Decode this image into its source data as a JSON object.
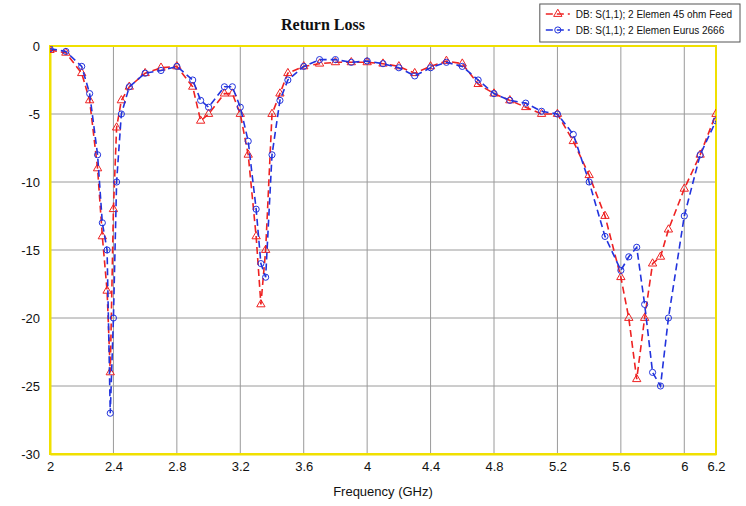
{
  "chart_data": {
    "type": "line",
    "title": "Return Loss",
    "x_label": "Frequency (GHz)",
    "x": [
      2.0,
      2.1,
      2.2,
      2.25,
      2.3,
      2.33,
      2.36,
      2.38,
      2.4,
      2.42,
      2.45,
      2.5,
      2.6,
      2.7,
      2.8,
      2.9,
      2.95,
      3.0,
      3.1,
      3.15,
      3.2,
      3.25,
      3.3,
      3.33,
      3.36,
      3.4,
      3.45,
      3.5,
      3.6,
      3.7,
      3.8,
      3.9,
      4.0,
      4.1,
      4.2,
      4.3,
      4.4,
      4.5,
      4.6,
      4.7,
      4.8,
      4.9,
      5.0,
      5.1,
      5.2,
      5.3,
      5.4,
      5.5,
      5.6,
      5.65,
      5.7,
      5.75,
      5.8,
      5.85,
      5.9,
      6.0,
      6.1,
      6.2
    ],
    "series": [
      {
        "name": "DB: S(1,1); 2 Elemen 45 ohm Feed",
        "color": "#ee2222",
        "marker": "triangle",
        "line_style": "dashed",
        "values": [
          -0.3,
          -0.5,
          -2,
          -4,
          -9,
          -14,
          -18,
          -24,
          -12,
          -6,
          -4,
          -3,
          -2,
          -1.6,
          -1.5,
          -3,
          -5.5,
          -5,
          -3.5,
          -3.5,
          -5,
          -8,
          -14,
          -19,
          -15,
          -5,
          -3.5,
          -2,
          -1.5,
          -1.3,
          -1.2,
          -1.2,
          -1.2,
          -1.3,
          -1.5,
          -2,
          -1.5,
          -1.1,
          -1.3,
          -2.8,
          -3.5,
          -4,
          -4.5,
          -5,
          -5,
          -7,
          -9.5,
          -12.5,
          -17,
          -20,
          -24.5,
          -20,
          -16,
          -15.5,
          -13.5,
          -10.5,
          -8,
          -5
        ]
      },
      {
        "name": "DB: S(1,1); 2 Elemen Eurus 2666",
        "color": "#2233dd",
        "marker": "circle",
        "line_style": "dashed",
        "values": [
          -0.2,
          -0.4,
          -1.5,
          -3.5,
          -8,
          -13,
          -15,
          -27,
          -20,
          -10,
          -5,
          -3,
          -2,
          -1.8,
          -1.5,
          -2.5,
          -4,
          -4.5,
          -3,
          -3,
          -4.5,
          -7,
          -12,
          -16,
          -17,
          -8,
          -4,
          -2.5,
          -1.5,
          -1,
          -1,
          -1.2,
          -1.1,
          -1.3,
          -1.6,
          -2.2,
          -1.6,
          -1.2,
          -1.5,
          -2.5,
          -3.5,
          -4,
          -4.2,
          -4.8,
          -5,
          -6.5,
          -10,
          -14,
          -16.5,
          -15.5,
          -14.8,
          -19,
          -24,
          -25,
          -20,
          -12.5,
          -8,
          -5.5
        ]
      }
    ],
    "xlim": [
      2,
      6.2
    ],
    "ylim": [
      -30,
      0
    ],
    "xticks": [
      2,
      2.4,
      2.8,
      3.2,
      3.6,
      4,
      4.4,
      4.8,
      5.2,
      5.6,
      6,
      6.2
    ],
    "yticks": [
      -30,
      -25,
      -20,
      -15,
      -10,
      -5,
      0
    ],
    "grid": true,
    "legend": "top-right"
  }
}
